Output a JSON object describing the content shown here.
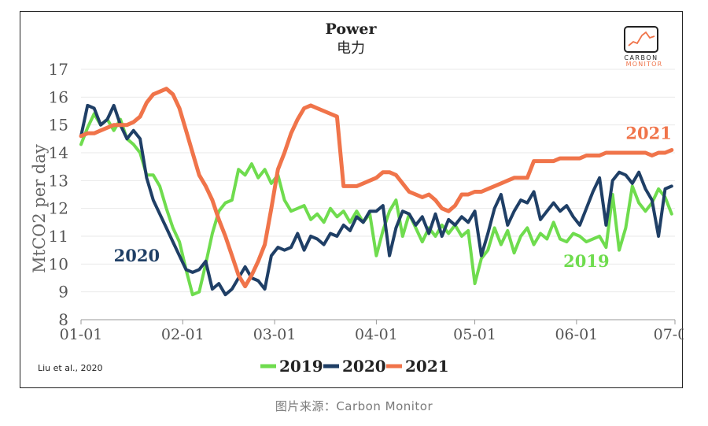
{
  "caption": "图片来源：Carbon Monitor",
  "logo": {
    "line1": "CARBON",
    "line2": "MONITOR"
  },
  "chart_data": {
    "type": "line",
    "title": "Power",
    "subtitle": "电力",
    "ylabel": "MtCO2 per day",
    "xlabel": "",
    "ylim": [
      8,
      17
    ],
    "yticks": [
      8,
      9,
      10,
      11,
      12,
      13,
      14,
      15,
      16,
      17
    ],
    "xlim": [
      "01-01",
      "07-01"
    ],
    "xticks": [
      {
        "label": "01-01",
        "day": 0
      },
      {
        "label": "02-01",
        "day": 31
      },
      {
        "label": "03-01",
        "day": 59
      },
      {
        "label": "04-01",
        "day": 90
      },
      {
        "label": "05-01",
        "day": 120
      },
      {
        "label": "06-01",
        "day": 151
      },
      {
        "label": "07-01",
        "day": 181
      }
    ],
    "grid": true,
    "legend_position": "bottom",
    "credit": "Liu et al., 2020",
    "series": [
      {
        "name": "2019",
        "color": "#6fdc4e",
        "label": "2019",
        "x": [
          0,
          2,
          4,
          6,
          8,
          10,
          12,
          14,
          16,
          18,
          20,
          22,
          24,
          26,
          28,
          30,
          32,
          34,
          36,
          38,
          40,
          42,
          44,
          46,
          48,
          50,
          52,
          54,
          56,
          58,
          60,
          62,
          64,
          66,
          68,
          70,
          72,
          74,
          76,
          78,
          80,
          82,
          84,
          86,
          88,
          90,
          92,
          94,
          96,
          98,
          100,
          102,
          104,
          106,
          108,
          110,
          112,
          114,
          116,
          118,
          120,
          122,
          124,
          126,
          128,
          130,
          132,
          134,
          136,
          138,
          140,
          142,
          144,
          146,
          148,
          150,
          152,
          154,
          156,
          158,
          160,
          162,
          164,
          166,
          168,
          170,
          172,
          174,
          176,
          178,
          180
        ],
        "y": [
          14.3,
          14.9,
          15.4,
          15.0,
          15.2,
          14.8,
          15.2,
          14.5,
          14.3,
          14.0,
          13.2,
          13.2,
          12.8,
          12.0,
          11.3,
          10.8,
          9.8,
          8.9,
          9.0,
          10.0,
          11.1,
          11.9,
          12.2,
          12.3,
          13.4,
          13.2,
          13.6,
          13.1,
          13.4,
          12.9,
          13.2,
          12.3,
          11.9,
          12.0,
          12.1,
          11.6,
          11.8,
          11.5,
          12.0,
          11.7,
          11.9,
          11.5,
          11.9,
          11.5,
          11.8,
          10.3,
          11.2,
          11.9,
          12.3,
          11.0,
          11.8,
          11.3,
          10.8,
          11.3,
          11.0,
          11.4,
          11.1,
          11.4,
          11.0,
          11.2,
          9.3,
          10.2,
          10.5,
          11.3,
          10.7,
          11.2,
          10.4,
          11.0,
          11.3,
          10.7,
          11.1,
          10.9,
          11.5,
          10.9,
          10.8,
          11.1,
          11.0,
          10.8,
          10.9,
          11.0,
          10.6,
          12.5,
          10.5,
          11.3,
          12.8,
          12.2,
          11.9,
          12.2,
          12.7,
          12.4,
          11.8
        ]
      },
      {
        "name": "2020",
        "color": "#1f3f66",
        "label": "2020",
        "x": [
          0,
          2,
          4,
          6,
          8,
          10,
          12,
          14,
          16,
          18,
          20,
          22,
          24,
          26,
          28,
          30,
          32,
          34,
          36,
          38,
          40,
          42,
          44,
          46,
          48,
          50,
          52,
          54,
          56,
          58,
          60,
          62,
          64,
          66,
          68,
          70,
          72,
          74,
          76,
          78,
          80,
          82,
          84,
          86,
          88,
          90,
          92,
          94,
          96,
          98,
          100,
          102,
          104,
          106,
          108,
          110,
          112,
          114,
          116,
          118,
          120,
          122,
          124,
          126,
          128,
          130,
          132,
          134,
          136,
          138,
          140,
          142,
          144,
          146,
          148,
          150,
          152,
          154,
          156,
          158,
          160,
          162,
          164,
          166,
          168,
          170,
          172,
          174,
          176,
          178,
          180
        ],
        "y": [
          14.6,
          15.7,
          15.6,
          15.0,
          15.2,
          15.7,
          15.0,
          14.5,
          14.8,
          14.5,
          13.1,
          12.3,
          11.8,
          11.3,
          10.8,
          10.3,
          9.8,
          9.7,
          9.8,
          10.1,
          9.1,
          9.3,
          8.9,
          9.1,
          9.5,
          9.9,
          9.5,
          9.4,
          9.1,
          10.3,
          10.6,
          10.5,
          10.6,
          11.1,
          10.5,
          11.0,
          10.9,
          10.7,
          11.1,
          11.0,
          11.4,
          11.2,
          11.7,
          11.5,
          11.9,
          11.9,
          12.1,
          10.3,
          11.3,
          11.9,
          11.8,
          11.4,
          11.7,
          11.1,
          11.8,
          11.0,
          11.6,
          11.4,
          11.7,
          11.5,
          11.9,
          10.3,
          11.1,
          12.0,
          12.5,
          11.4,
          11.9,
          12.3,
          12.2,
          12.6,
          11.6,
          11.9,
          12.2,
          11.9,
          12.1,
          11.7,
          11.4,
          12.0,
          12.6,
          13.1,
          11.4,
          13.0,
          13.3,
          13.2,
          12.9,
          13.3,
          12.7,
          12.3,
          11.0,
          12.7,
          12.8
        ]
      },
      {
        "name": "2021",
        "color": "#f0744a",
        "label": "2021",
        "x": [
          0,
          2,
          4,
          6,
          8,
          10,
          12,
          14,
          16,
          18,
          20,
          22,
          24,
          26,
          28,
          30,
          32,
          34,
          36,
          38,
          40,
          42,
          44,
          46,
          48,
          50,
          52,
          54,
          56,
          58,
          60,
          62,
          64,
          66,
          68,
          70,
          72,
          74,
          76,
          78,
          80,
          82,
          84,
          86,
          88,
          90,
          92,
          94,
          96,
          98,
          100,
          102,
          104,
          106,
          108,
          110,
          112,
          114,
          116,
          118,
          120,
          122,
          124,
          126,
          128,
          130,
          132,
          134,
          136,
          138,
          140,
          142,
          144,
          146,
          148,
          150,
          152,
          154,
          156,
          158,
          160,
          162,
          164,
          166,
          168,
          170,
          172,
          174,
          176,
          178,
          180
        ],
        "y": [
          14.6,
          14.7,
          14.7,
          14.8,
          14.9,
          15.0,
          15.0,
          15.0,
          15.1,
          15.3,
          15.8,
          16.1,
          16.2,
          16.3,
          16.1,
          15.6,
          14.8,
          14.0,
          13.2,
          12.8,
          12.3,
          11.6,
          11.0,
          10.3,
          9.6,
          9.2,
          9.6,
          10.1,
          10.7,
          12.0,
          13.4,
          14.0,
          14.7,
          15.2,
          15.6,
          15.7,
          15.6,
          15.5,
          15.4,
          15.3,
          12.8,
          12.8,
          12.8,
          12.9,
          13.0,
          13.1,
          13.3,
          13.3,
          13.2,
          12.9,
          12.6,
          12.5,
          12.4,
          12.5,
          12.3,
          12.0,
          11.9,
          12.1,
          12.5,
          12.5,
          12.6,
          12.6,
          12.7,
          12.8,
          12.9,
          13.0,
          13.1,
          13.1,
          13.1,
          13.7,
          13.7,
          13.7,
          13.7,
          13.8,
          13.8,
          13.8,
          13.8,
          13.9,
          13.9,
          13.9,
          14.0,
          14.0,
          14.0,
          14.0,
          14.0,
          14.0,
          14.0,
          13.9,
          14.0,
          14.0,
          14.1
        ]
      }
    ]
  }
}
